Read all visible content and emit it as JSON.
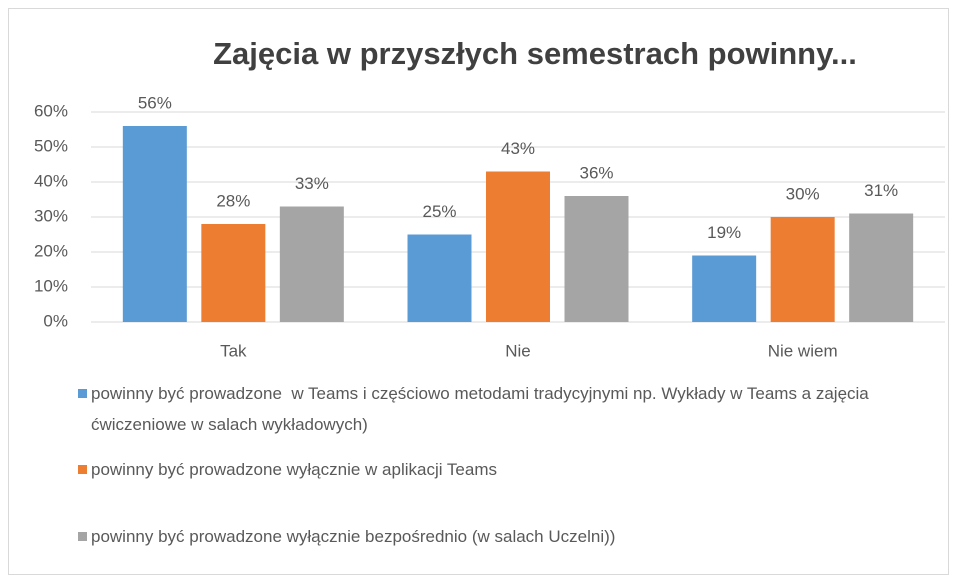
{
  "chart_data": {
    "type": "bar",
    "title": "Zajęcia w przyszłych semestrach powinny...",
    "categories": [
      "Tak",
      "Nie",
      "Nie wiem"
    ],
    "series": [
      {
        "name": "powinny być prowadzone  w Teams i częściowo metodami tradycyjnymi np. Wykłady w Teams a zajęcia ćwiczeniowe w salach wykładowych)",
        "color": "#5b9bd5",
        "values": [
          56,
          25,
          19
        ],
        "value_labels": [
          "56%",
          "25%",
          "19%"
        ]
      },
      {
        "name": "powinny być prowadzone wyłącznie w aplikacji Teams",
        "color": "#ed7d31",
        "values": [
          28,
          43,
          30
        ],
        "value_labels": [
          "28%",
          "43%",
          "30%"
        ]
      },
      {
        "name": "powinny być prowadzone wyłącznie bezpośrednio (w salach Uczelni))",
        "color": "#a5a5a5",
        "values": [
          33,
          36,
          31
        ],
        "value_labels": [
          "33%",
          "36%",
          "31%"
        ]
      }
    ],
    "ylim": [
      0,
      60
    ],
    "yticks": [
      {
        "value": 0,
        "label": "0%"
      },
      {
        "value": 10,
        "label": "10%"
      },
      {
        "value": 20,
        "label": "20%"
      },
      {
        "value": 30,
        "label": "30%"
      },
      {
        "value": 40,
        "label": "40%"
      },
      {
        "value": 50,
        "label": "50%"
      },
      {
        "value": 60,
        "label": "60%"
      }
    ],
    "grid": true,
    "legend": "bottom"
  }
}
